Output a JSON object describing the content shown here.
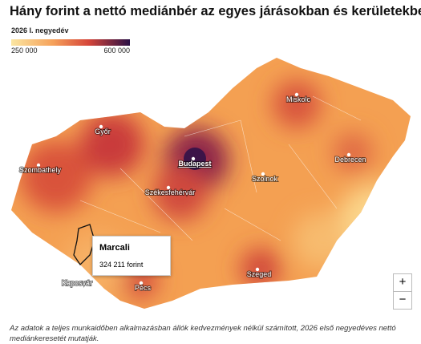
{
  "header": {
    "title": "Hány forint a nettó mediánbér az egyes járásokban és kerületekben?"
  },
  "legend": {
    "title": "2026 I. negyedév",
    "min_label": "250 000",
    "max_label": "600 000"
  },
  "cities": [
    {
      "label": "Miskolc"
    },
    {
      "label": "Győr"
    },
    {
      "label": "Budapest"
    },
    {
      "label": "Debrecen"
    },
    {
      "label": "Szombathely"
    },
    {
      "label": "Szolnok"
    },
    {
      "label": "Székesfehérvár"
    },
    {
      "label": "Szeged"
    },
    {
      "label": "Pécs"
    },
    {
      "label": "Kaposvár"
    }
  ],
  "tooltip": {
    "name": "Marcali",
    "value": "324 211 forint"
  },
  "zoom": {
    "in": "+",
    "out": "−"
  },
  "footnote": "Az adatok a teljes munkaidőben alkalmazásban állók kedvezmények nélkül számított, 2026 első negyedéves nettó mediánkeresetét mutatják."
}
